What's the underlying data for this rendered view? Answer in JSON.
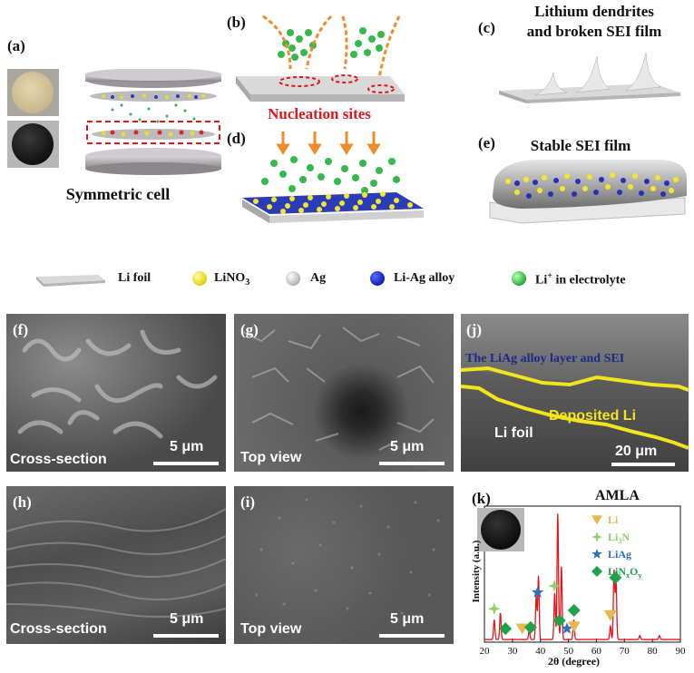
{
  "panels": {
    "a": {
      "label": "(a)",
      "caption": "Symmetric cell"
    },
    "b": {
      "label": "(b)",
      "caption": "Nucleation sites"
    },
    "c": {
      "label": "(c)",
      "caption_line1": "Lithium dendrites",
      "caption_line2": "and broken SEI film"
    },
    "d": {
      "label": "(d)"
    },
    "e": {
      "label": "(e)",
      "caption": "Stable SEI film"
    },
    "f": {
      "label": "(f)",
      "view": "Cross-section",
      "scale": "5 μm"
    },
    "g": {
      "label": "(g)",
      "view": "Top view",
      "scale": "5 μm"
    },
    "h": {
      "label": "(h)",
      "view": "Cross-section",
      "scale": "5 μm"
    },
    "i": {
      "label": "(i)",
      "view": "Top view",
      "scale": "5 μm"
    },
    "j": {
      "label": "(j)",
      "layer": "The LiAg alloy layer and SEI",
      "deposit": "Deposited Li",
      "foil": "Li foil",
      "scale": "20 μm"
    }
  },
  "legend": {
    "li_foil": "Li foil",
    "lino3": "LiNO",
    "lino3_sub": "3",
    "ag": "Ag",
    "liag_alloy": "Li-Ag alloy",
    "li_ion_prefix": "Li",
    "li_ion_sup": "+",
    "li_ion_suffix": " in electrolyte"
  },
  "xrd": {
    "label": "(k)",
    "legend_title": "AMLA",
    "legend": [
      {
        "name": "Li",
        "marker": "triangle",
        "color": "#e8b84a"
      },
      {
        "name": "Li",
        "sub": "3",
        "tail": "N",
        "marker": "star4",
        "color": "#8fcf6a"
      },
      {
        "name": "LiAg",
        "marker": "star5",
        "color": "#2f6fc0"
      },
      {
        "name": "LiN",
        "sub": "x",
        "tail": "O",
        "sub2": "y",
        "marker": "diamond",
        "color": "#1fa34a"
      }
    ],
    "ylabel": "Intensity (a.u.)",
    "xlabel": "2θ (degree)",
    "xticks": [
      "20",
      "30",
      "40",
      "50",
      "60",
      "70",
      "80",
      "90"
    ]
  },
  "chart_data": {
    "type": "line",
    "xlabel": "2θ (degree)",
    "ylabel": "Intensity (a.u.)",
    "xlim": [
      20,
      90
    ],
    "series": [
      {
        "peaks": [
          [
            23.5,
            0.15
          ],
          [
            25.7,
            0.2
          ],
          [
            36.0,
            0.07
          ],
          [
            38.5,
            0.33
          ],
          [
            39.3,
            0.48
          ],
          [
            45.1,
            0.35
          ],
          [
            46.2,
            0.95
          ],
          [
            47.5,
            0.55
          ],
          [
            51.9,
            0.15
          ],
          [
            65.0,
            0.1
          ],
          [
            66.3,
            0.52
          ],
          [
            67.0,
            0.44
          ],
          [
            75.5,
            0.03
          ],
          [
            82.5,
            0.03
          ]
        ]
      }
    ],
    "annotations": [
      {
        "marker": "Li3N",
        "x": 23.5
      },
      {
        "marker": "LiNxOy",
        "x": 27.5
      },
      {
        "marker": "Li",
        "x": 33.5
      },
      {
        "marker": "LiNxOy",
        "x": 36.5
      },
      {
        "marker": "LiAg",
        "x": 39.0
      },
      {
        "marker": "Li3N",
        "x": 45.0
      },
      {
        "marker": "LiNxOy",
        "x": 46.8
      },
      {
        "marker": "LiAg",
        "x": 49.5
      },
      {
        "marker": "LiNxOy",
        "x": 52.0
      },
      {
        "marker": "Li",
        "x": 52.0
      },
      {
        "marker": "Li",
        "x": 65.0
      },
      {
        "marker": "LiNxOy",
        "x": 66.8
      }
    ]
  }
}
